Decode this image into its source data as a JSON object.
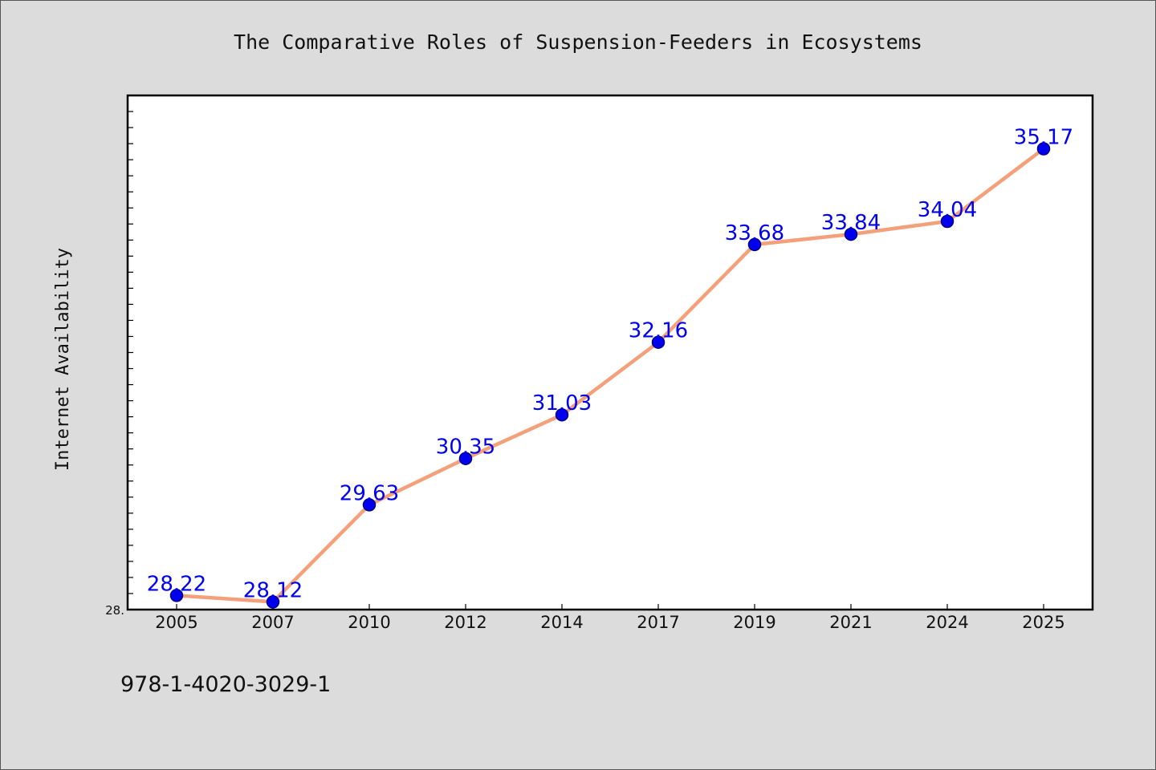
{
  "chart_data": {
    "type": "line",
    "title": "The Comparative Roles of Suspension-Feeders in Ecosystems",
    "xlabel": "",
    "ylabel": "Internet Availability",
    "categories": [
      "2005",
      "2007",
      "2010",
      "2012",
      "2014",
      "2017",
      "2019",
      "2021",
      "2024",
      "2025"
    ],
    "series": [
      {
        "values": [
          28.22,
          28.12,
          29.63,
          30.35,
          31.03,
          32.16,
          33.68,
          33.84,
          34.04,
          35.17
        ],
        "labels": [
          "28.22",
          "28.12",
          "29.63",
          "30.35",
          "31.03",
          "32.16",
          "33.68",
          "33.84",
          "34.04",
          "35.17"
        ]
      }
    ],
    "ylim": [
      28.0,
      36.0
    ],
    "ytick_labels": [
      "28."
    ],
    "grid": false,
    "legend": "none",
    "colors": {
      "line": "#f4a07a",
      "marker": "#0000ee",
      "marker_edge": "#00008b",
      "data_label": "#0000ee",
      "plot_background": "#ffffff",
      "figure_background": "#dcdcdc"
    }
  },
  "footnote": "978-1-4020-3029-1"
}
